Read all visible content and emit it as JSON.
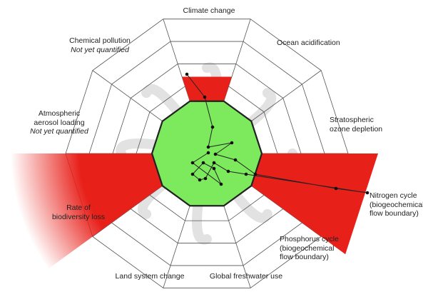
{
  "boundaries": [
    {
      "lines": [
        "Climate change"
      ],
      "subtitle": ""
    },
    {
      "lines": [
        "Ocean acidification"
      ],
      "subtitle": ""
    },
    {
      "lines": [
        "Stratospheric",
        "ozone depletion"
      ],
      "subtitle": ""
    },
    {
      "lines": [
        "Nitrogen cycle",
        "(biogeochemical",
        "flow boundary)"
      ],
      "subtitle": ""
    },
    {
      "lines": [
        "Phosphorus cycle",
        "(biogeochemical",
        "flow boundary)"
      ],
      "subtitle": ""
    },
    {
      "lines": [
        "Global freshwater use"
      ],
      "subtitle": ""
    },
    {
      "lines": [
        "Land system change"
      ],
      "subtitle": ""
    },
    {
      "lines": [
        "Rate of",
        "biodiversity loss"
      ],
      "subtitle": ""
    },
    {
      "lines": [
        "Atmospheric",
        "aerosol loading"
      ],
      "subtitle": "Not yet quantified"
    },
    {
      "lines": [
        "Chemical pollution"
      ],
      "subtitle": "Not yet quantified"
    }
  ],
  "colors": {
    "exceeded": "#e8201a",
    "safe_zone": "#7cea5c",
    "grid": "#555555",
    "safe_outline": "#222222",
    "watermark": "#e2e2e2"
  }
}
